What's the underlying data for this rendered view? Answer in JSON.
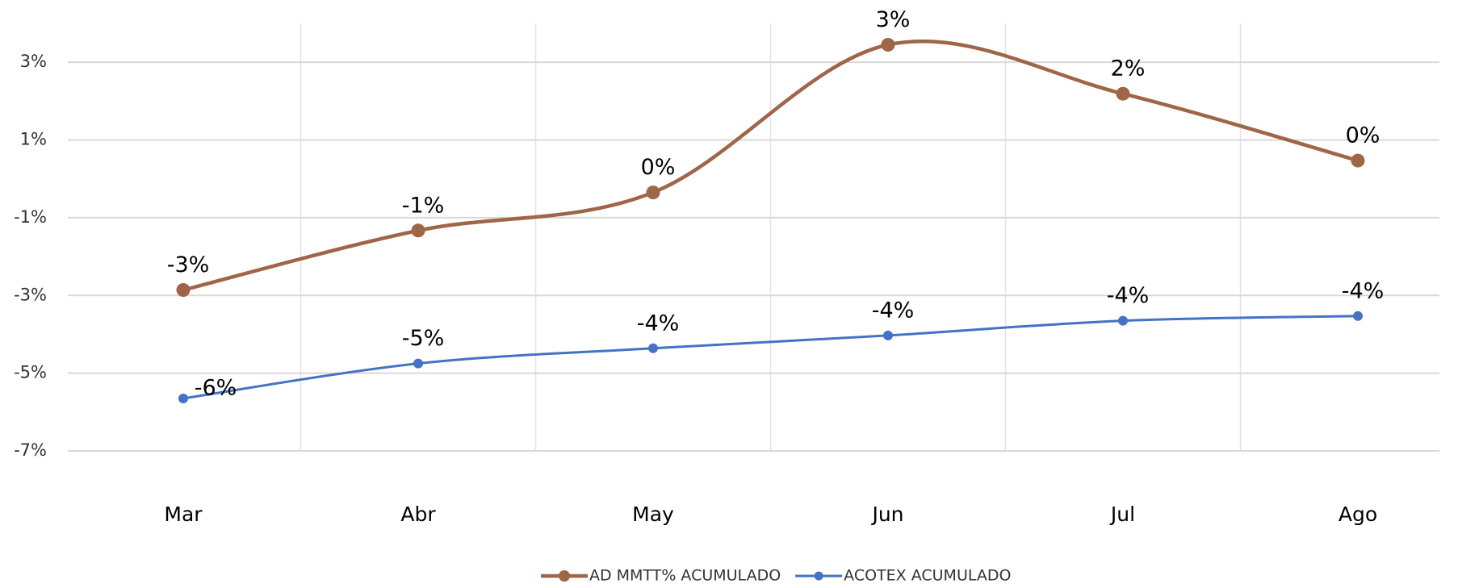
{
  "chart_data": {
    "type": "line",
    "categories": [
      "Mar",
      "Abr",
      "May",
      "Jun",
      "Jul",
      "Ago"
    ],
    "series": [
      {
        "name": "AD MMTT% ACUMULADO",
        "color": "#9e6547",
        "values": [
          -2.86,
          -1.33,
          -0.35,
          3.45,
          2.19,
          0.47
        ],
        "value_labels": [
          "-3%",
          "-1%",
          "0%",
          "3%",
          "2%",
          "0%"
        ]
      },
      {
        "name": "ACOTEX ACUMULADO",
        "color": "#4472c4",
        "values": [
          -5.65,
          -4.75,
          -4.36,
          -4.03,
          -3.65,
          -3.53
        ],
        "value_labels": [
          "-6%",
          "-5%",
          "-4%",
          "-4%",
          "-4%",
          "-4%"
        ]
      }
    ],
    "ylim": [
      -7,
      4
    ],
    "yticks": [
      {
        "value": -7,
        "label": "-7%"
      },
      {
        "value": -5,
        "label": "-5%"
      },
      {
        "value": -3,
        "label": "-3%"
      },
      {
        "value": -1,
        "label": "-1%"
      },
      {
        "value": 1,
        "label": "1%"
      },
      {
        "value": 3,
        "label": "3%"
      }
    ],
    "grid": true,
    "smooth": true,
    "legend": "bottom"
  }
}
